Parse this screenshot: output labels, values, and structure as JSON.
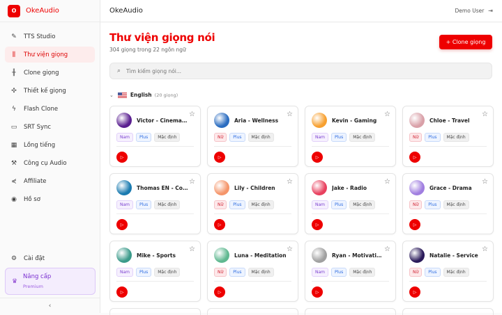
{
  "brand": {
    "logo_letter": "O",
    "name": "OkeAudio"
  },
  "sidebar": {
    "items": [
      {
        "label": "TTS Studio",
        "icon": "mic-icon",
        "glyph": "✎"
      },
      {
        "label": "Thư viện giọng",
        "icon": "library-icon",
        "glyph": "⫼",
        "active": true
      },
      {
        "label": "Clone giọng",
        "icon": "waveform-icon",
        "glyph": "╫"
      },
      {
        "label": "Thiết kế giọng",
        "icon": "sparkles-icon",
        "glyph": "✣"
      },
      {
        "label": "Flash Clone",
        "icon": "lightning-icon",
        "glyph": "ϟ"
      },
      {
        "label": "SRT Sync",
        "icon": "subtitles-icon",
        "glyph": "▭"
      },
      {
        "label": "Lồng tiếng",
        "icon": "film-icon",
        "glyph": "▦"
      },
      {
        "label": "Công cụ Audio",
        "icon": "wrench-icon",
        "glyph": "⚒"
      },
      {
        "label": "Affiliate",
        "icon": "share-icon",
        "glyph": "⋞"
      },
      {
        "label": "Hồ sơ",
        "icon": "user-circle-icon",
        "glyph": "◉"
      }
    ],
    "settings": {
      "label": "Cài đặt",
      "glyph": "⚙"
    },
    "upgrade": {
      "title": "Nâng cấp",
      "subtitle": "Premium"
    },
    "collapse": "‹"
  },
  "header": {
    "title": "OkeAudio",
    "user": "Demo User"
  },
  "page": {
    "title": "Thư viện giọng nói",
    "subtitle": "304 giọng trong 22 ngôn ngữ",
    "clone_button": "+  Clone giọng",
    "search_placeholder": "Tìm kiếm giọng nói..."
  },
  "group": {
    "language": "English",
    "count": "(20 giọng)"
  },
  "voices": [
    {
      "name": "Victor - Cinematic",
      "gender": "Nam",
      "tier": "Plus",
      "style": "Mặc định",
      "color": "#5a1f90"
    },
    {
      "name": "Aria - Wellness",
      "gender": "Nữ",
      "tier": "Plus",
      "style": "Mặc định",
      "color": "#2a6cc0"
    },
    {
      "name": "Kevin - Gaming",
      "gender": "Nam",
      "tier": "Plus",
      "style": "Mặc định",
      "color": "#f7a030"
    },
    {
      "name": "Chloe - Travel",
      "gender": "Nữ",
      "tier": "Plus",
      "style": "Mặc định",
      "color": "#d9a0a8"
    },
    {
      "name": "Thomas EN - Corporate",
      "gender": "Nam",
      "tier": "Plus",
      "style": "Mặc định",
      "color": "#1a7bb0"
    },
    {
      "name": "Lily - Children",
      "gender": "Nữ",
      "tier": "Plus",
      "style": "Mặc định",
      "color": "#f5956a"
    },
    {
      "name": "Jake - Radio",
      "gender": "Nam",
      "tier": "Plus",
      "style": "Mặc định",
      "color": "#e8405e"
    },
    {
      "name": "Grace - Drama",
      "gender": "Nữ",
      "tier": "Plus",
      "style": "Mặc định",
      "color": "#a07ee0"
    },
    {
      "name": "Mike - Sports",
      "gender": "Nam",
      "tier": "Plus",
      "style": "Mặc định",
      "color": "#3a9a8a"
    },
    {
      "name": "Luna - Meditation",
      "gender": "Nữ",
      "tier": "Plus",
      "style": "Mặc định",
      "color": "#5fb890"
    },
    {
      "name": "Ryan - Motivational",
      "gender": "Nam",
      "tier": "Plus",
      "style": "Mặc định",
      "color": "#a0a0a0"
    },
    {
      "name": "Natalie - Service",
      "gender": "Nữ",
      "tier": "Plus",
      "style": "Mặc định",
      "color": "#2a1a5a"
    }
  ],
  "colors": {
    "accent": "#e00000",
    "premium": "#7a2fd0"
  }
}
